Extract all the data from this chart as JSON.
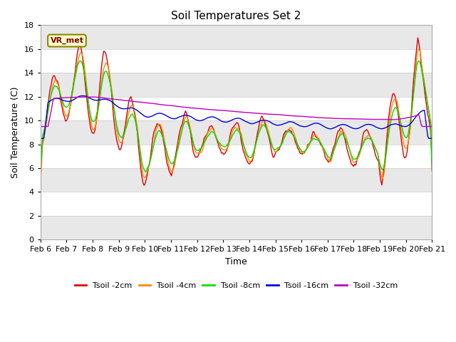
{
  "title": "Soil Temperatures Set 2",
  "xlabel": "Time",
  "ylabel": "Soil Temperature (C)",
  "ylim": [
    0,
    18
  ],
  "yticks": [
    0,
    2,
    4,
    6,
    8,
    10,
    12,
    14,
    16,
    18
  ],
  "series_colors": {
    "Tsoil -2cm": "#dd0000",
    "Tsoil -4cm": "#ff8800",
    "Tsoil -8cm": "#00dd00",
    "Tsoil -16cm": "#0000dd",
    "Tsoil -32cm": "#bb00bb"
  },
  "legend_label_text": "VR_met",
  "background_plot": "#ffffff",
  "background_fig": "#ffffff",
  "band_color": "#e8e8e8",
  "tick_label_dates": [
    "Feb 6",
    "Feb 7",
    "Feb 8",
    "Feb 9",
    "Feb 10",
    "Feb 11",
    "Feb 12",
    "Feb 13",
    "Feb 14",
    "Feb 15",
    "Feb 16",
    "Feb 17",
    "Feb 18",
    "Feb 19",
    "Feb 20",
    "Feb 21"
  ]
}
